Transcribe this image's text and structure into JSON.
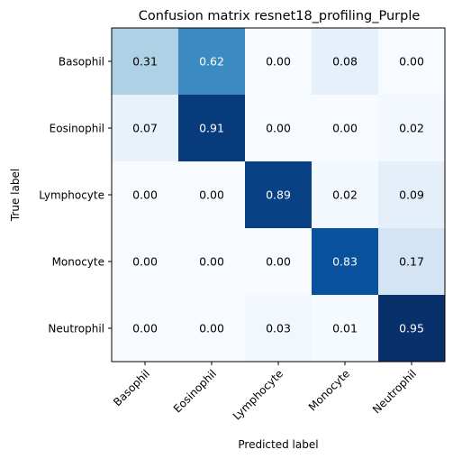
{
  "chart_data": {
    "type": "heatmap",
    "title": "Confusion matrix resnet18_profiling_Purple",
    "xlabel": "Predicted label",
    "ylabel": "True label",
    "categories_x": [
      "Basophil",
      "Eosinophil",
      "Lymphocyte",
      "Monocyte",
      "Neutrophil"
    ],
    "categories_y": [
      "Basophil",
      "Eosinophil",
      "Lymphocyte",
      "Monocyte",
      "Neutrophil"
    ],
    "values": [
      [
        0.31,
        0.62,
        0.0,
        0.08,
        0.0
      ],
      [
        0.07,
        0.91,
        0.0,
        0.0,
        0.02
      ],
      [
        0.0,
        0.0,
        0.89,
        0.02,
        0.09
      ],
      [
        0.0,
        0.0,
        0.0,
        0.83,
        0.17
      ],
      [
        0.0,
        0.0,
        0.03,
        0.01,
        0.95
      ]
    ],
    "value_range": [
      0,
      0.95
    ],
    "colormap": "Blues",
    "grid": false
  }
}
